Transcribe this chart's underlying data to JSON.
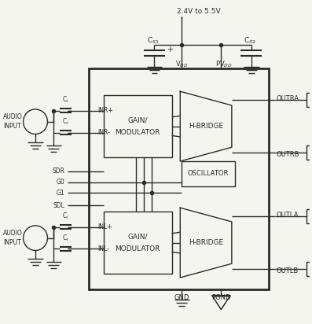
{
  "bg_color": "#f5f5f0",
  "line_color": "#2a2a2a",
  "text_color": "#2a2a2a",
  "supply_label": "2.4V to 5.5V",
  "vdd_label": "V$_{DD}$",
  "pvdd_label": "PV$_{DD}$",
  "cs1_label": "C$_{S1}$",
  "cs2_label": "C$_{S2}$",
  "gnd_label": "GND",
  "pgnd_label": "PGND",
  "outra_label": "OUTRA",
  "outrb_label": "OUTRB",
  "outla_label": "OUTLA",
  "outlb_label": "OUTLB",
  "inr_plus_label": "INR+",
  "inr_minus_label": "INR-",
  "inl_plus_label": "INL+",
  "inl_minus_label": "INL-",
  "sdr_label": "SDR",
  "g0_label": "G0",
  "g1_label": "G1",
  "sdl_label": "SDL",
  "gain_mod_label1": "GAIN/",
  "gain_mod_label2": "MODULATOR",
  "hbridge_label": "H-BRIDGE",
  "osc_label": "OSCILLATOR",
  "audio_label1": "AUDIO",
  "audio_label2": "INPUT",
  "ci_label": "C$_i$"
}
